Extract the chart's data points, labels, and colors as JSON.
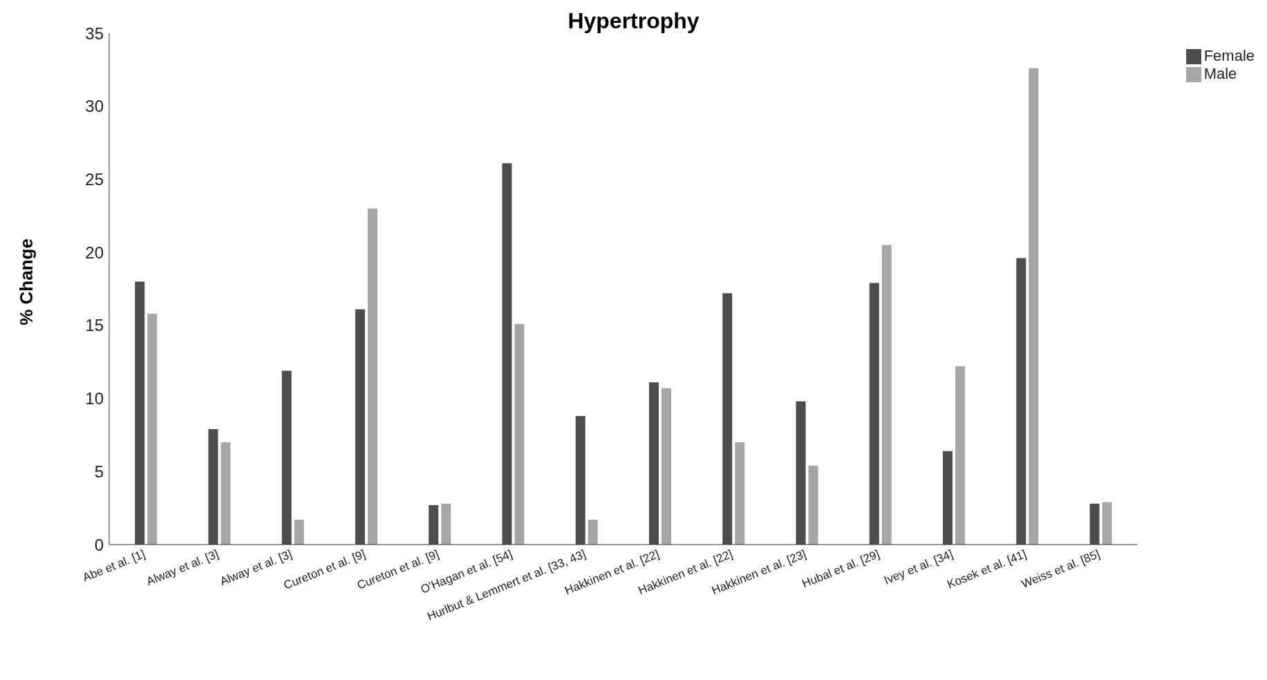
{
  "chart_data": {
    "type": "bar",
    "title": "Hypertrophy",
    "ylabel": "% Change",
    "categories": [
      "Abe et al. [1]",
      "Alway et al. [3]",
      "Alway et al. [3]",
      "Cureton et al. [9]",
      "Cureton et al. [9]",
      "O'Hagan et al. [54]",
      "Hurlbut & Lemmert et al. [33, 43]",
      "Hakkinen et al. [22]",
      "Hakkinen et al. [22]",
      "Hakkinen et al. [23]",
      "Hubal et al. [29]",
      "Ivey et al. [34]",
      "Kosek et al. [41]",
      "Weiss et al. [85]"
    ],
    "series": [
      {
        "name": "Female",
        "color": "#4d4d4d",
        "values": [
          18.0,
          7.9,
          11.9,
          16.1,
          2.7,
          26.1,
          8.8,
          11.1,
          17.2,
          9.8,
          17.9,
          6.4,
          19.6,
          2.8
        ]
      },
      {
        "name": "Male",
        "color": "#a6a6a6",
        "values": [
          15.8,
          7.0,
          1.7,
          23.0,
          2.8,
          15.1,
          1.7,
          10.7,
          7.0,
          5.4,
          20.5,
          12.2,
          32.6,
          2.9
        ]
      }
    ],
    "ylim": [
      0,
      35
    ],
    "yticks": [
      0,
      5,
      10,
      15,
      20,
      25,
      30,
      35
    ],
    "grid": false,
    "legend": "top right"
  }
}
